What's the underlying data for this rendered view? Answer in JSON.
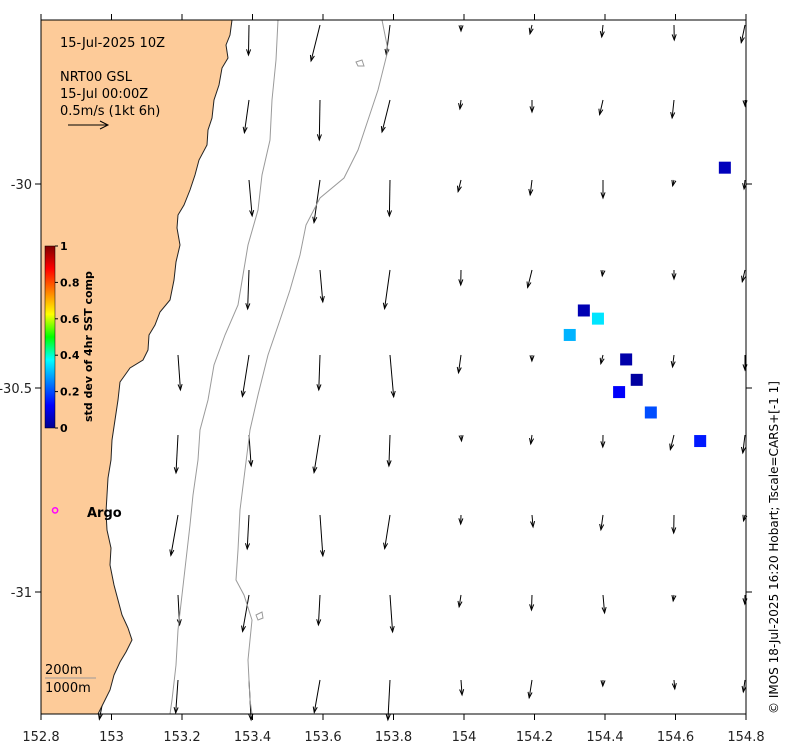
{
  "map": {
    "timestamp": "15-Jul-2025 10Z",
    "product": "NRT00 GSL",
    "product_time": "15-Jul 00:00Z",
    "scale_label": "0.5m/s (1kt 6h)",
    "credit": "© IMOS 18-Jul-2025 16:20 Hobart; Tscale=CARS+[-1 1]",
    "x_ticks": [
      "152.8",
      "153",
      "153.2",
      "153.4",
      "153.6",
      "153.8",
      "154",
      "154.2",
      "154.4",
      "154.6",
      "154.8"
    ],
    "y_ticks": [
      "-30",
      "-30.5",
      "-31"
    ],
    "depth_labels": [
      "200m",
      "1000m"
    ],
    "argo_label": "Argo",
    "colors": {
      "land": "#fdcb99",
      "coast": "#222222",
      "isobath": "#9a9a9a",
      "argo": "#ff00ff"
    }
  },
  "colorbar": {
    "title": "std dev of 4hr SST comp",
    "ticks": [
      "1",
      "0.8",
      "0.6",
      "0.4",
      "0.2",
      "0"
    ]
  },
  "sst_patches": [
    {
      "lon": 154.74,
      "lat": -29.96,
      "value": 0.05
    },
    {
      "lon": 154.34,
      "lat": -30.31,
      "value": 0.04
    },
    {
      "lon": 154.38,
      "lat": -30.33,
      "value": 0.35
    },
    {
      "lon": 154.3,
      "lat": -30.37,
      "value": 0.3
    },
    {
      "lon": 154.46,
      "lat": -30.43,
      "value": 0.03
    },
    {
      "lon": 154.49,
      "lat": -30.48,
      "value": 0.02
    },
    {
      "lon": 154.44,
      "lat": -30.51,
      "value": 0.12
    },
    {
      "lon": 154.53,
      "lat": -30.56,
      "value": 0.2
    },
    {
      "lon": 154.67,
      "lat": -30.63,
      "value": 0.15
    }
  ],
  "argo": {
    "lon": 152.84,
    "lat": -30.8
  }
}
